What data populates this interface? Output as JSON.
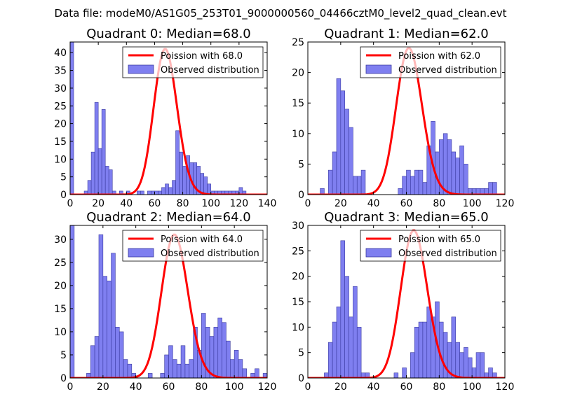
{
  "suptitle": "Data file: modeM0/AS1G05_253T01_9000000560_04466cztM0_level2_quad_clean.evt",
  "colors": {
    "bar_fill": "#7f7ff0",
    "bar_edge": "#3a3aa0",
    "curve": "#ff0000"
  },
  "chart_data": [
    {
      "type": "bar",
      "title": "Quadrant 0: Median=68.0",
      "median": 68.0,
      "bin_width": 2.5,
      "xlim": [
        0,
        140
      ],
      "ylim": [
        0,
        43
      ],
      "xticks": [
        0,
        20,
        40,
        60,
        80,
        100,
        120,
        140
      ],
      "yticks": [
        0,
        5,
        10,
        15,
        20,
        25,
        30,
        35,
        40
      ],
      "legend": {
        "line_label": "Poission with 68.0",
        "bar_label": "Observed distribution",
        "placement": "top-right"
      },
      "bars": [
        [
          0,
          43
        ],
        [
          10,
          1
        ],
        [
          12.5,
          4
        ],
        [
          15,
          12
        ],
        [
          17.5,
          26
        ],
        [
          20,
          13
        ],
        [
          22.5,
          24
        ],
        [
          25,
          8
        ],
        [
          27.5,
          7
        ],
        [
          30,
          1
        ],
        [
          35,
          1
        ],
        [
          40,
          1
        ],
        [
          47.5,
          1
        ],
        [
          50,
          1
        ],
        [
          55,
          1
        ],
        [
          57.5,
          1
        ],
        [
          60,
          1
        ],
        [
          62.5,
          1
        ],
        [
          65,
          2
        ],
        [
          67.5,
          3
        ],
        [
          70,
          2
        ],
        [
          72.5,
          4
        ],
        [
          75,
          18
        ],
        [
          77.5,
          12
        ],
        [
          80,
          8
        ],
        [
          82.5,
          11
        ],
        [
          85,
          9
        ],
        [
          87.5,
          9
        ],
        [
          90,
          8
        ],
        [
          92.5,
          6
        ],
        [
          95,
          5
        ],
        [
          97.5,
          3
        ],
        [
          100,
          1
        ],
        [
          102.5,
          1
        ],
        [
          105,
          1
        ],
        [
          107.5,
          1
        ],
        [
          110,
          1
        ],
        [
          112.5,
          1
        ],
        [
          115,
          1
        ],
        [
          117.5,
          1
        ],
        [
          120,
          2
        ],
        [
          122.5,
          1
        ]
      ],
      "poisson_scale": 41
    },
    {
      "type": "bar",
      "title": "Quadrant 1: Median=62.0",
      "median": 62.0,
      "bin_width": 2.5,
      "xlim": [
        0,
        120
      ],
      "ylim": [
        0,
        25
      ],
      "xticks": [
        0,
        20,
        40,
        60,
        80,
        100,
        120
      ],
      "yticks": [
        0,
        5,
        10,
        15,
        20,
        25
      ],
      "legend": {
        "line_label": "Poission with 62.0",
        "bar_label": "Observed distribution",
        "placement": "top-right"
      },
      "bars": [
        [
          7.5,
          1
        ],
        [
          12.5,
          4
        ],
        [
          15,
          7
        ],
        [
          17.5,
          19
        ],
        [
          20,
          17
        ],
        [
          22.5,
          14
        ],
        [
          25,
          11
        ],
        [
          27.5,
          3
        ],
        [
          30,
          3
        ],
        [
          32.5,
          4
        ],
        [
          55,
          1
        ],
        [
          57.5,
          3
        ],
        [
          60,
          4
        ],
        [
          62.5,
          3
        ],
        [
          65,
          4
        ],
        [
          67.5,
          4
        ],
        [
          70,
          2
        ],
        [
          72.5,
          8
        ],
        [
          75,
          12
        ],
        [
          77.5,
          7
        ],
        [
          80,
          9
        ],
        [
          82.5,
          10
        ],
        [
          85,
          9
        ],
        [
          87.5,
          7
        ],
        [
          90,
          6
        ],
        [
          92.5,
          8
        ],
        [
          95,
          5
        ],
        [
          97.5,
          1
        ],
        [
          100,
          1
        ],
        [
          102.5,
          1
        ],
        [
          105,
          1
        ],
        [
          107.5,
          1
        ],
        [
          110,
          2
        ],
        [
          112.5,
          2
        ]
      ],
      "poisson_scale": 24
    },
    {
      "type": "bar",
      "title": "Quadrant 2: Median=64.0",
      "median": 64.0,
      "bin_width": 2.5,
      "xlim": [
        0,
        120
      ],
      "ylim": [
        0,
        33
      ],
      "xticks": [
        0,
        20,
        40,
        60,
        80,
        100,
        120
      ],
      "yticks": [
        0,
        5,
        10,
        15,
        20,
        25,
        30
      ],
      "legend": {
        "line_label": "Poission with 64.0",
        "bar_label": "Observed distribution",
        "placement": "top-right"
      },
      "bars": [
        [
          0,
          33
        ],
        [
          10,
          1
        ],
        [
          12.5,
          7
        ],
        [
          15,
          9
        ],
        [
          17.5,
          31
        ],
        [
          20,
          22
        ],
        [
          22.5,
          21
        ],
        [
          25,
          27
        ],
        [
          27.5,
          11
        ],
        [
          30,
          10
        ],
        [
          32.5,
          4
        ],
        [
          35,
          3
        ],
        [
          37.5,
          1
        ],
        [
          47.5,
          1
        ],
        [
          55,
          1
        ],
        [
          57.5,
          5
        ],
        [
          60,
          7
        ],
        [
          62.5,
          4
        ],
        [
          65,
          3
        ],
        [
          67.5,
          7
        ],
        [
          70,
          3
        ],
        [
          72.5,
          4
        ],
        [
          75,
          11
        ],
        [
          77.5,
          6
        ],
        [
          80,
          14
        ],
        [
          82.5,
          11
        ],
        [
          85,
          9
        ],
        [
          87.5,
          11
        ],
        [
          90,
          13
        ],
        [
          92.5,
          12
        ],
        [
          95,
          8
        ],
        [
          97.5,
          4
        ],
        [
          100,
          6
        ],
        [
          102.5,
          4
        ],
        [
          105,
          2
        ],
        [
          110,
          1
        ],
        [
          112.5,
          2
        ],
        [
          117.5,
          1
        ]
      ],
      "poisson_scale": 31
    },
    {
      "type": "bar",
      "title": "Quadrant 3: Median=65.0",
      "median": 65.0,
      "bin_width": 2.5,
      "xlim": [
        0,
        120
      ],
      "ylim": [
        0,
        30
      ],
      "xticks": [
        0,
        20,
        40,
        60,
        80,
        100,
        120
      ],
      "yticks": [
        0,
        5,
        10,
        15,
        20,
        25,
        30
      ],
      "legend": {
        "line_label": "Poission with 65.0",
        "bar_label": "Observed distribution",
        "placement": "top-right"
      },
      "bars": [
        [
          10,
          1
        ],
        [
          12.5,
          7
        ],
        [
          15,
          11
        ],
        [
          17.5,
          14
        ],
        [
          20,
          27
        ],
        [
          22.5,
          20
        ],
        [
          25,
          12
        ],
        [
          27.5,
          18
        ],
        [
          30,
          10
        ],
        [
          32.5,
          1
        ],
        [
          35,
          1
        ],
        [
          52.5,
          1
        ],
        [
          57.5,
          2
        ],
        [
          62.5,
          5
        ],
        [
          65,
          10
        ],
        [
          67.5,
          11
        ],
        [
          70,
          11
        ],
        [
          72.5,
          14
        ],
        [
          75,
          12
        ],
        [
          77.5,
          15
        ],
        [
          80,
          11
        ],
        [
          82.5,
          9
        ],
        [
          85,
          7
        ],
        [
          87.5,
          12
        ],
        [
          90,
          7
        ],
        [
          92.5,
          5
        ],
        [
          95,
          6
        ],
        [
          97.5,
          4
        ],
        [
          100,
          2
        ],
        [
          102.5,
          5
        ],
        [
          105,
          5
        ],
        [
          107.5,
          1
        ],
        [
          110,
          2
        ],
        [
          112.5,
          1
        ]
      ],
      "poisson_scale": 29
    }
  ]
}
